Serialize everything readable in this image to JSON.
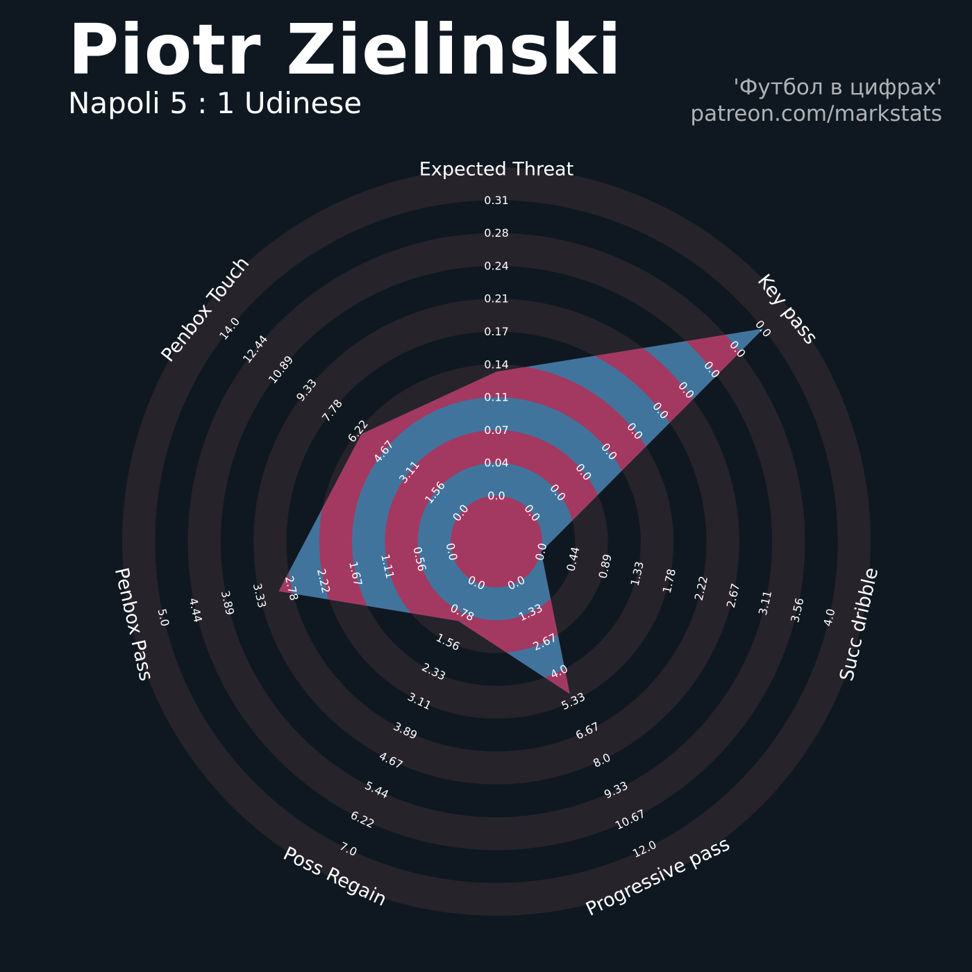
{
  "header": {
    "title": "Piotr Zielinski",
    "subtitle": "Napoli 5 : 1 Udinese",
    "credit_line1": "'Футбол в цифрах'",
    "credit_line2": "patreon.com/markstats"
  },
  "colors": {
    "background": "#0f1820",
    "ring_band": "#27232b",
    "fill_primary": "#a33961",
    "fill_secondary": "#41749d",
    "text": "#ffffff",
    "credit_text": "#b0b3b6"
  },
  "chart_data": {
    "type": "radar",
    "title": "Piotr Zielinski",
    "subtitle": "Napoli 5 : 1 Udinese",
    "params": [
      {
        "label": "Expected Threat",
        "value": 0.13,
        "ticks": [
          "0.0",
          "0.04",
          "0.07",
          "0.11",
          "0.14",
          "0.17",
          "0.21",
          "0.24",
          "0.28",
          "0.31"
        ]
      },
      {
        "label": "Key pass",
        "value": 0.0,
        "ticks": [
          "0.0",
          "0.0",
          "0.0",
          "0.0",
          "0.0",
          "0.0",
          "0.0",
          "0.0",
          "0.0",
          "0.0"
        ]
      },
      {
        "label": "Succ dribble",
        "value": 0.0,
        "ticks": [
          "0.0",
          "0.44",
          "0.89",
          "1.33",
          "1.78",
          "2.22",
          "2.67",
          "3.11",
          "3.56",
          "4.0"
        ]
      },
      {
        "label": "Progressive pass",
        "value": 5.0,
        "ticks": [
          "0.0",
          "1.33",
          "2.67",
          "4.0",
          "5.33",
          "6.67",
          "8.0",
          "9.33",
          "10.67",
          "12.0"
        ]
      },
      {
        "label": "Poss Regain",
        "value": 1.0,
        "ticks": [
          "0.0",
          "0.78",
          "1.56",
          "2.33",
          "3.11",
          "3.89",
          "4.67",
          "5.44",
          "6.22",
          "7.0"
        ]
      },
      {
        "label": "Penbox Pass",
        "value": 3.0,
        "ticks": [
          "0.0",
          "0.56",
          "1.11",
          "1.67",
          "2.22",
          "2.78",
          "3.33",
          "3.89",
          "4.44",
          "5.0"
        ]
      },
      {
        "label": "Penbox Touch",
        "value": 6.0,
        "ticks": [
          "0.0",
          "1.56",
          "3.11",
          "4.67",
          "6.22",
          "7.78",
          "9.33",
          "10.89",
          "12.44",
          "14.0"
        ]
      }
    ]
  }
}
